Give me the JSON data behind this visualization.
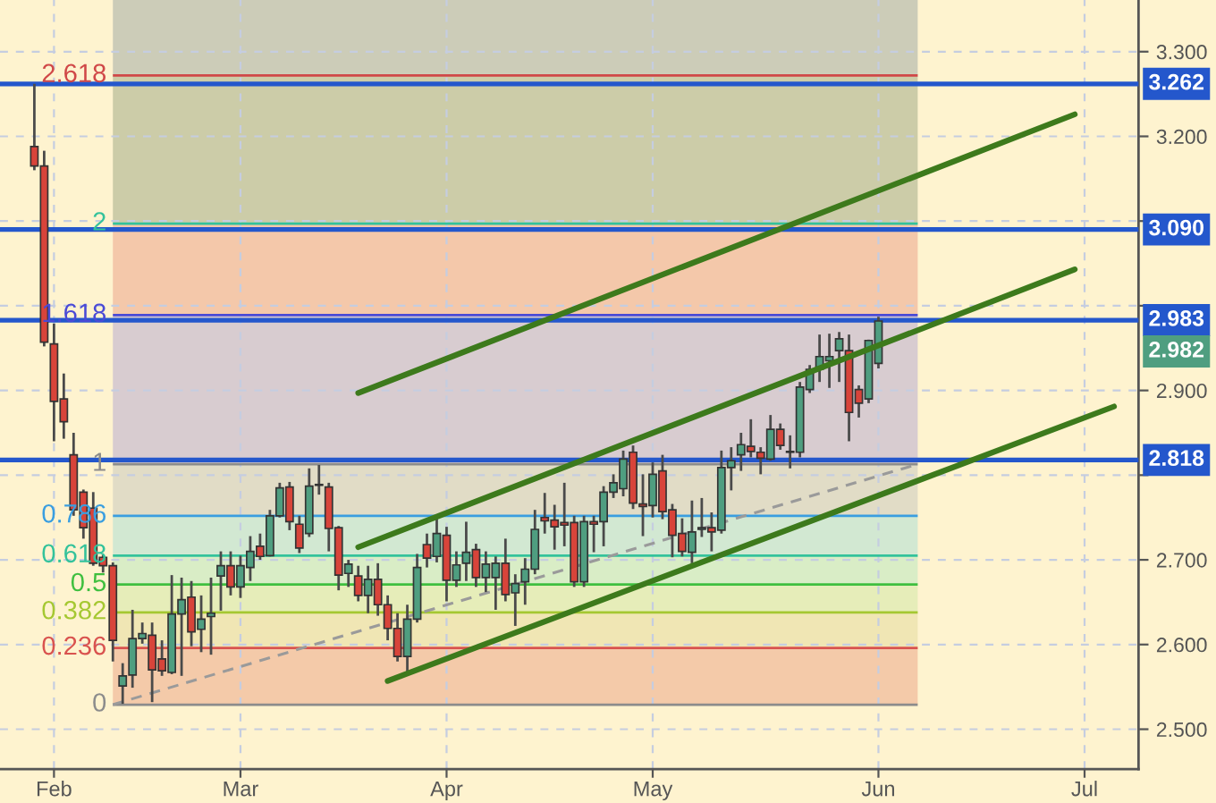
{
  "chart_data": {
    "type": "candlestick",
    "categories": [
      null,
      null,
      null,
      null,
      null,
      "Feb",
      null,
      null,
      null,
      null,
      null,
      null,
      null,
      null,
      null,
      null,
      null,
      null,
      null,
      null,
      null,
      null,
      null,
      null,
      "Mar",
      null,
      null,
      null,
      null,
      null,
      null,
      null,
      null,
      null,
      null,
      null,
      null,
      null,
      null,
      null,
      null,
      null,
      null,
      null,
      null,
      "Apr",
      null,
      null,
      null,
      null,
      null,
      null,
      null,
      null,
      null,
      null,
      null,
      null,
      null,
      null,
      null,
      null,
      null,
      null,
      null,
      null,
      "May",
      null,
      null,
      null,
      null,
      null,
      null,
      null,
      null,
      null,
      null,
      null,
      null,
      null,
      null,
      null,
      null,
      null,
      null,
      null,
      null,
      null,
      null,
      "Jun",
      null,
      null,
      null,
      null,
      null,
      null,
      null,
      null,
      null,
      null,
      null,
      null,
      null,
      null,
      null,
      null,
      null,
      null,
      null,
      null,
      "Jul",
      null,
      null,
      null,
      null,
      null
    ],
    "ohlc": [
      null,
      null,
      null,
      [
        3.188,
        3.262,
        3.16,
        3.165
      ],
      [
        3.165,
        3.183,
        2.952,
        2.957
      ],
      [
        2.955,
        2.979,
        2.84,
        2.887
      ],
      [
        2.89,
        2.92,
        2.843,
        2.863
      ],
      [
        2.824,
        2.85,
        2.752,
        2.759
      ],
      [
        2.78,
        2.783,
        2.725,
        2.738
      ],
      [
        2.761,
        2.78,
        2.693,
        2.696
      ],
      [
        2.703,
        2.706,
        2.685,
        2.693
      ],
      [
        2.693,
        2.697,
        2.58,
        2.605
      ],
      [
        2.551,
        2.578,
        2.53,
        2.563
      ],
      [
        2.564,
        2.641,
        2.549,
        2.607
      ],
      [
        2.607,
        2.626,
        2.601,
        2.613
      ],
      [
        2.611,
        2.626,
        2.532,
        2.57
      ],
      [
        2.583,
        2.605,
        2.563,
        2.569
      ],
      [
        2.567,
        2.682,
        2.565,
        2.636
      ],
      [
        2.636,
        2.679,
        2.563,
        2.653
      ],
      [
        2.656,
        2.675,
        2.598,
        2.615
      ],
      [
        2.618,
        2.658,
        2.591,
        2.63
      ],
      [
        2.633,
        2.679,
        2.588,
        2.637
      ],
      [
        2.681,
        2.71,
        2.64,
        2.693
      ],
      [
        2.693,
        2.71,
        2.658,
        2.668
      ],
      [
        2.668,
        2.705,
        2.655,
        2.693
      ],
      [
        2.691,
        2.728,
        2.675,
        2.71
      ],
      [
        2.716,
        2.731,
        2.7,
        2.704
      ],
      [
        2.705,
        2.759,
        2.704,
        2.752
      ],
      [
        2.752,
        2.791,
        2.75,
        2.785
      ],
      [
        2.786,
        2.792,
        2.735,
        2.745
      ],
      [
        2.742,
        2.752,
        2.708,
        2.714
      ],
      [
        2.731,
        2.808,
        2.727,
        2.787
      ],
      [
        2.788,
        2.812,
        2.777,
        2.789
      ],
      [
        2.786,
        2.791,
        2.71,
        2.737
      ],
      [
        2.738,
        2.74,
        2.664,
        2.682
      ],
      [
        2.684,
        2.7,
        2.668,
        2.695
      ],
      [
        2.681,
        2.693,
        2.651,
        2.658
      ],
      [
        2.658,
        2.693,
        2.637,
        2.677
      ],
      [
        2.677,
        2.696,
        2.634,
        2.647
      ],
      [
        2.647,
        2.658,
        2.605,
        2.619
      ],
      [
        2.619,
        2.637,
        2.58,
        2.586
      ],
      [
        2.586,
        2.647,
        2.567,
        2.63
      ],
      [
        2.63,
        2.707,
        2.626,
        2.691
      ],
      [
        2.718,
        2.731,
        2.691,
        2.702
      ],
      [
        2.704,
        2.749,
        2.697,
        2.731
      ],
      [
        2.729,
        2.739,
        2.651,
        2.676
      ],
      [
        2.676,
        2.71,
        2.668,
        2.694
      ],
      [
        2.696,
        2.745,
        2.675,
        2.709
      ],
      [
        2.712,
        2.719,
        2.668,
        2.679
      ],
      [
        2.679,
        2.71,
        2.662,
        2.695
      ],
      [
        2.679,
        2.704,
        2.641,
        2.696
      ],
      [
        2.696,
        2.725,
        2.651,
        2.659
      ],
      [
        2.661,
        2.683,
        2.622,
        2.672
      ],
      [
        2.674,
        2.702,
        2.647,
        2.689
      ],
      [
        2.689,
        2.759,
        2.683,
        2.736
      ],
      [
        2.75,
        2.779,
        2.731,
        2.746
      ],
      [
        2.747,
        2.765,
        2.712,
        2.739
      ],
      [
        2.744,
        2.791,
        2.716,
        2.741
      ],
      [
        2.744,
        2.752,
        2.668,
        2.674
      ],
      [
        2.674,
        2.752,
        2.668,
        2.745
      ],
      [
        2.745,
        2.752,
        2.709,
        2.742
      ],
      [
        2.745,
        2.787,
        2.716,
        2.78
      ],
      [
        2.78,
        2.801,
        2.773,
        2.791
      ],
      [
        2.784,
        2.829,
        2.775,
        2.819
      ],
      [
        2.827,
        2.835,
        2.76,
        2.767
      ],
      [
        2.766,
        2.801,
        2.728,
        2.763
      ],
      [
        2.764,
        2.815,
        2.75,
        2.801
      ],
      [
        2.805,
        2.824,
        2.748,
        2.757
      ],
      [
        2.759,
        2.766,
        2.703,
        2.729
      ],
      [
        2.731,
        2.749,
        2.704,
        2.71
      ],
      [
        2.709,
        2.77,
        2.696,
        2.733
      ],
      [
        2.736,
        2.773,
        2.727,
        2.738
      ],
      [
        2.738,
        2.756,
        2.71,
        2.733
      ],
      [
        2.735,
        2.829,
        2.731,
        2.809
      ],
      [
        2.809,
        2.833,
        2.782,
        2.817
      ],
      [
        2.824,
        2.85,
        2.805,
        2.836
      ],
      [
        2.834,
        2.866,
        2.821,
        2.828
      ],
      [
        2.827,
        2.833,
        2.801,
        2.82
      ],
      [
        2.819,
        2.871,
        2.817,
        2.854
      ],
      [
        2.854,
        2.861,
        2.83,
        2.835
      ],
      [
        2.827,
        2.847,
        2.808,
        2.828
      ],
      [
        2.827,
        2.91,
        2.821,
        2.904
      ],
      [
        2.901,
        2.93,
        2.897,
        2.925
      ],
      [
        2.925,
        2.966,
        2.91,
        2.94
      ],
      [
        2.935,
        2.967,
        2.903,
        2.94
      ],
      [
        2.947,
        2.969,
        2.91,
        2.961
      ],
      [
        2.947,
        2.966,
        2.84,
        2.874
      ],
      [
        2.901,
        2.906,
        2.868,
        2.885
      ],
      [
        2.89,
        2.96,
        2.885,
        2.959
      ],
      [
        2.932,
        2.987,
        2.926,
        2.982
      ],
      null,
      null,
      null,
      null,
      null,
      null,
      null,
      null,
      null,
      null,
      null,
      null,
      null,
      null,
      null,
      null,
      null,
      null,
      null,
      null,
      null,
      null,
      null,
      null,
      null,
      null
    ],
    "colors": [
      null,
      null,
      null,
      "#d8443a",
      "#d8443a",
      "#d8443a",
      "#d8443a",
      "#d8443a",
      "#d8443a",
      "#d8443a",
      "#d8443a",
      "#d8443a",
      "#4f9e80",
      "#4f9e80",
      "#4f9e80",
      "#d8443a",
      "#d8443a",
      "#4f9e80",
      "#4f9e80",
      "#d8443a",
      "#4f9e80",
      "#4f9e80",
      "#4f9e80",
      "#d8443a",
      "#4f9e80",
      "#4f9e80",
      "#d8443a",
      "#4f9e80",
      "#4f9e80",
      "#d8443a",
      "#d8443a",
      "#4f9e80",
      "#4f9e80",
      "#d8443a",
      "#d8443a",
      "#4f9e80",
      "#d8443a",
      "#4f9e80",
      "#d8443a",
      "#d8443a",
      "#d8443a",
      "#4f9e80",
      "#4f9e80",
      "#d8443a",
      "#4f9e80",
      "#d8443a",
      "#4f9e80",
      "#4f9e80",
      "#d8443a",
      "#4f9e80",
      "#4f9e80",
      "#d8443a",
      "#4f9e80",
      "#4f9e80",
      "#4f9e80",
      "#d8443a",
      "#d8443a",
      "#d8443a",
      "#d8443a",
      "#4f9e80",
      "#d8443a",
      "#4f9e80",
      "#4f9e80",
      "#4f9e80",
      "#d8443a",
      "#d8443a",
      "#4f9e80",
      "#d8443a",
      "#d8443a",
      "#d8443a",
      "#4f9e80",
      "#4f9e80",
      "#d8443a",
      "#4f9e80",
      "#4f9e80",
      "#4f9e80",
      "#d8443a",
      "#d8443a",
      "#4f9e80",
      "#d8443a",
      "#4f9e80",
      "#4f9e80",
      "#4f9e80",
      "#4f9e80",
      "#4f9e80",
      "#4f9e80",
      "#d8443a",
      "#d8443a",
      "#4f9e80",
      "#4f9e80",
      null,
      null,
      null,
      null,
      null,
      null,
      null,
      null,
      null,
      null,
      null,
      null,
      null,
      null,
      null,
      null,
      null,
      null,
      null,
      null,
      null,
      null,
      null,
      null,
      null,
      null
    ],
    "series": [
      {
        "type": "line",
        "color": "#3d7a1c",
        "values": [
          null,
          null,
          null,
          null,
          null,
          null,
          null,
          null,
          null,
          null,
          null,
          null,
          null,
          null,
          null,
          null,
          null,
          null,
          null,
          null,
          null,
          null,
          null,
          null,
          null,
          null,
          null,
          null,
          null,
          null,
          null,
          null,
          null,
          null,
          null,
          null,
          2.897,
          null,
          null,
          null,
          null,
          null,
          null,
          null,
          null,
          null,
          null,
          null,
          null,
          null,
          null,
          null,
          null,
          null,
          null,
          null,
          null,
          null,
          null,
          null,
          null,
          null,
          null,
          null,
          null,
          null,
          null,
          null,
          null,
          null,
          null,
          null,
          null,
          null,
          null,
          null,
          null,
          null,
          null,
          null,
          null,
          null,
          null,
          null,
          null,
          null,
          null,
          null,
          null,
          null,
          null,
          null,
          null,
          null,
          null,
          null,
          null,
          null,
          null,
          null,
          null,
          null,
          null,
          null,
          null,
          null,
          null,
          null,
          null,
          3.226,
          null,
          null,
          null,
          null,
          null,
          null
        ]
      },
      {
        "type": "line",
        "color": "#3d7a1c",
        "values": [
          null,
          null,
          null,
          null,
          null,
          null,
          null,
          null,
          null,
          null,
          null,
          null,
          null,
          null,
          null,
          null,
          null,
          null,
          null,
          null,
          null,
          null,
          null,
          null,
          null,
          null,
          null,
          null,
          null,
          null,
          null,
          null,
          null,
          null,
          null,
          null,
          2.715,
          null,
          null,
          null,
          null,
          null,
          null,
          null,
          null,
          null,
          null,
          null,
          null,
          null,
          null,
          null,
          null,
          null,
          null,
          null,
          null,
          null,
          null,
          null,
          null,
          null,
          null,
          null,
          null,
          null,
          null,
          null,
          null,
          null,
          null,
          null,
          null,
          null,
          null,
          null,
          null,
          null,
          null,
          null,
          null,
          null,
          null,
          null,
          null,
          null,
          null,
          null,
          null,
          null,
          null,
          null,
          null,
          null,
          null,
          null,
          null,
          null,
          null,
          null,
          null,
          null,
          null,
          null,
          null,
          null,
          null,
          null,
          null,
          3.043,
          null,
          null,
          null,
          null,
          null,
          null
        ]
      },
      {
        "type": "line",
        "color": "#3d7a1c",
        "values": [
          null,
          null,
          null,
          null,
          null,
          null,
          null,
          null,
          null,
          null,
          null,
          null,
          null,
          null,
          null,
          null,
          null,
          null,
          null,
          null,
          null,
          null,
          null,
          null,
          null,
          null,
          null,
          null,
          null,
          null,
          null,
          null,
          null,
          null,
          null,
          null,
          null,
          null,
          null,
          2.557,
          null,
          null,
          null,
          null,
          null,
          null,
          null,
          null,
          null,
          null,
          null,
          null,
          null,
          null,
          null,
          null,
          null,
          null,
          null,
          null,
          null,
          null,
          null,
          null,
          null,
          null,
          null,
          null,
          null,
          null,
          null,
          null,
          null,
          null,
          null,
          null,
          null,
          null,
          null,
          null,
          null,
          null,
          null,
          null,
          null,
          null,
          null,
          null,
          null,
          null,
          null,
          null,
          null,
          null,
          null,
          null,
          null,
          null,
          null,
          null,
          null,
          null,
          null,
          null,
          null,
          null,
          null,
          null,
          null,
          null,
          null,
          null,
          null,
          2.881,
          null,
          null
        ]
      },
      {
        "type": "line",
        "line_style": "dashed",
        "color": "#9a9a9a",
        "values": [
          null,
          null,
          null,
          null,
          null,
          null,
          null,
          null,
          null,
          null,
          null,
          2.529,
          null,
          null,
          null,
          null,
          null,
          null,
          null,
          null,
          null,
          null,
          null,
          null,
          null,
          null,
          null,
          null,
          null,
          null,
          null,
          null,
          null,
          null,
          null,
          null,
          null,
          null,
          null,
          null,
          null,
          null,
          null,
          null,
          null,
          null,
          null,
          null,
          null,
          null,
          null,
          null,
          null,
          null,
          null,
          null,
          null,
          null,
          null,
          null,
          null,
          null,
          null,
          null,
          null,
          null,
          null,
          null,
          null,
          null,
          null,
          null,
          null,
          null,
          null,
          null,
          null,
          null,
          null,
          null,
          null,
          null,
          null,
          null,
          null,
          null,
          null,
          null,
          null,
          null,
          null,
          null,
          null,
          2.813,
          null,
          null,
          null,
          null,
          null,
          null,
          null,
          null,
          null,
          null,
          null,
          null,
          null,
          null,
          null,
          null,
          null,
          null,
          null,
          null,
          null,
          null
        ]
      }
    ],
    "bands": [
      {
        "axis": "y",
        "from": 2.529,
        "to": 2.596,
        "label": "0",
        "color": "#f4caa9"
      },
      {
        "axis": "y",
        "from": 2.596,
        "to": 2.638,
        "label": "0.236",
        "color": "#f0e6b4"
      },
      {
        "axis": "y",
        "from": 2.638,
        "to": 2.671,
        "label": "0.382",
        "color": "#e6edb9"
      },
      {
        "axis": "y",
        "from": 2.671,
        "to": 2.705,
        "label": "0.5",
        "color": "#d9edc6"
      },
      {
        "axis": "y",
        "from": 2.705,
        "to": 2.752,
        "label": "0.618",
        "color": "#d2e8d2"
      },
      {
        "axis": "y",
        "from": 2.752,
        "to": 2.813,
        "label": "0.786",
        "color": "#e1dcc6"
      },
      {
        "axis": "y",
        "from": 2.813,
        "to": 2.989,
        "label": "1",
        "color": "#d8ccd0"
      },
      {
        "axis": "y",
        "from": 2.989,
        "to": 3.097,
        "label": "1.618",
        "color": "#f4c8aa"
      },
      {
        "axis": "y",
        "from": 3.097,
        "to": 3.272,
        "label": "2",
        "color": "#cccca8"
      },
      {
        "axis": "y",
        "from": 3.272,
        "to": 3.361,
        "label": "2.618",
        "color": "#ccccb8"
      }
    ],
    "ref_lines": [
      {
        "axis": "y",
        "value": 2.529,
        "color": "#8c8c8c"
      },
      {
        "axis": "y",
        "value": 2.596,
        "color": "#d9534f"
      },
      {
        "axis": "y",
        "value": 2.638,
        "color": "#a5c832"
      },
      {
        "axis": "y",
        "value": 2.671,
        "color": "#3fbf3f"
      },
      {
        "axis": "y",
        "value": 2.705,
        "color": "#33c29b"
      },
      {
        "axis": "y",
        "value": 2.752,
        "color": "#3a9ee0"
      },
      {
        "axis": "y",
        "value": 2.813,
        "color": "#8c8c8c"
      },
      {
        "axis": "y",
        "value": 2.989,
        "color": "#4a4ad6"
      },
      {
        "axis": "y",
        "value": 3.097,
        "color": "#33c29b"
      },
      {
        "axis": "y",
        "value": 3.272,
        "color": "#d04848"
      },
      {
        "axis": "y",
        "value": 3.262,
        "label": "3.262",
        "color": "#2457cc"
      },
      {
        "axis": "y",
        "value": 3.09,
        "label": "3.090",
        "color": "#2457cc"
      },
      {
        "axis": "y",
        "value": 2.983,
        "label": "2.983",
        "color": "#2457cc"
      },
      {
        "axis": "y",
        "value": 2.818,
        "label": "2.818",
        "color": "#2457cc"
      }
    ],
    "annotations": [
      {
        "text": "2.982",
        "y": 2.982
      }
    ],
    "ylim": [
      2.453,
      3.361
    ],
    "yticks": [
      {
        "value": 2.5,
        "label": "2.500"
      },
      {
        "value": 2.6,
        "label": "2.600"
      },
      {
        "value": 2.7,
        "label": "2.700"
      },
      {
        "value": 2.8,
        "label": null
      },
      {
        "value": 2.9,
        "label": "2.900"
      },
      {
        "value": 3.0,
        "label": null
      },
      {
        "value": 3.1,
        "label": null
      },
      {
        "value": 3.2,
        "label": "3.200"
      },
      {
        "value": 3.3,
        "label": "3.300"
      }
    ],
    "grid": true
  }
}
